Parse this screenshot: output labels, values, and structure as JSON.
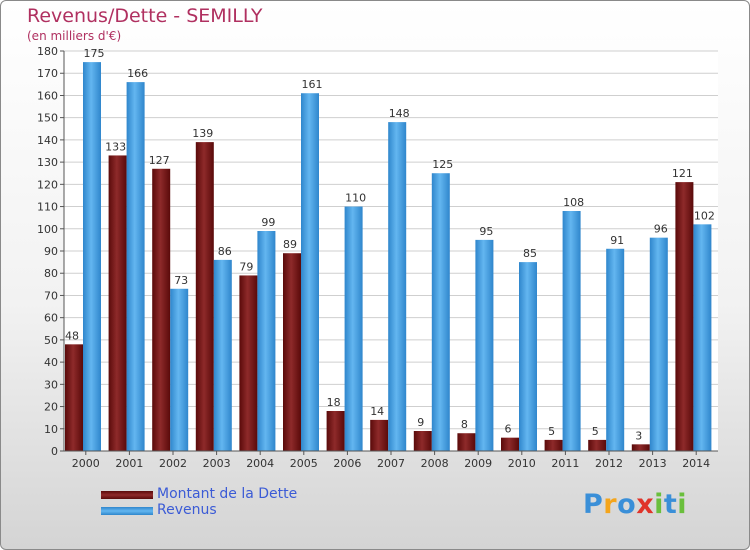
{
  "title": "Revenus/Dette - SEMILLY",
  "subtitle": "(en milliers d'€)",
  "logo": {
    "text": "Proxiti",
    "letters": [
      {
        "ch": "P",
        "color": "#3a8fd8"
      },
      {
        "ch": "r",
        "color": "#f4a51c"
      },
      {
        "ch": "o",
        "color": "#3a8fd8"
      },
      {
        "ch": "x",
        "color": "#e0342a"
      },
      {
        "ch": "i",
        "color": "#6abf3c"
      },
      {
        "ch": "t",
        "color": "#3a8fd8"
      },
      {
        "ch": "i",
        "color": "#6abf3c"
      }
    ]
  },
  "chart_data": {
    "type": "bar",
    "title": "Revenus/Dette - SEMILLY",
    "subtitle": "(en milliers d'€)",
    "categories": [
      "2000",
      "2001",
      "2002",
      "2003",
      "2004",
      "2005",
      "2006",
      "2007",
      "2008",
      "2009",
      "2010",
      "2011",
      "2012",
      "2013",
      "2014"
    ],
    "series": [
      {
        "name": "Montant de la Dette",
        "color": "#7a1c1c",
        "values": [
          48,
          133,
          127,
          139,
          79,
          89,
          18,
          14,
          9,
          8,
          6,
          5,
          5,
          3,
          121
        ]
      },
      {
        "name": "Revenus",
        "color": "#4aa3e8",
        "values": [
          175,
          166,
          73,
          86,
          99,
          161,
          110,
          148,
          125,
          95,
          85,
          108,
          91,
          96,
          102
        ]
      }
    ],
    "yticks": [
      0,
      10,
      20,
      30,
      40,
      50,
      60,
      70,
      80,
      90,
      100,
      110,
      120,
      130,
      140,
      150,
      160,
      170,
      180
    ],
    "ylim": [
      0,
      180
    ],
    "grid": true,
    "legend_position": "bottom-left"
  }
}
